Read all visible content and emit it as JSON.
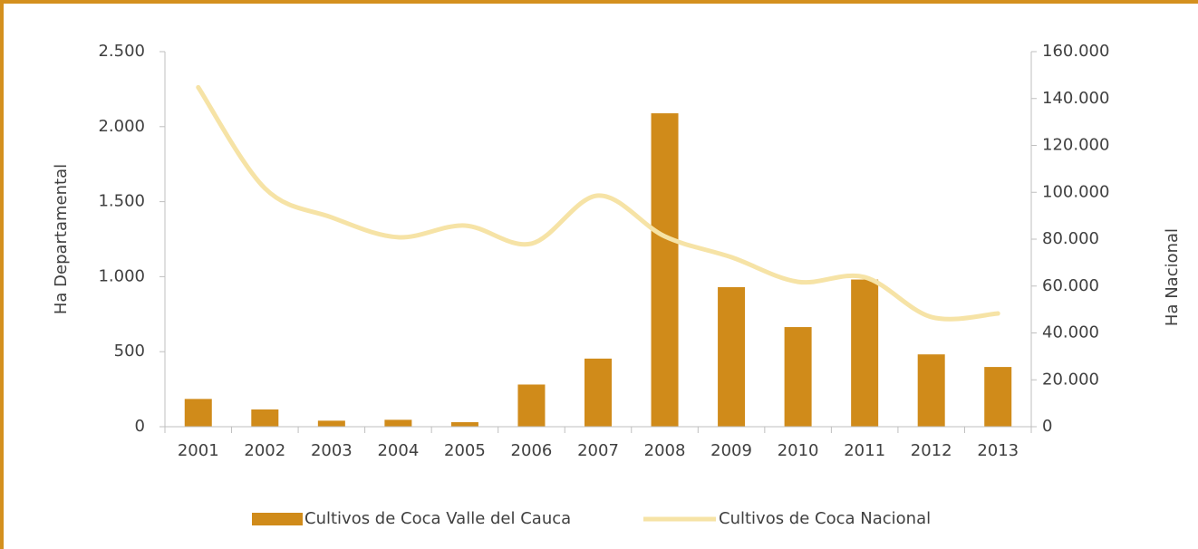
{
  "chart_data": {
    "type": "bar_line",
    "categories": [
      "2001",
      "2002",
      "2003",
      "2004",
      "2005",
      "2006",
      "2007",
      "2008",
      "2009",
      "2010",
      "2011",
      "2012",
      "2013"
    ],
    "series": [
      {
        "name": "Cultivos de Coca Valle del Cauca",
        "type": "bar",
        "color": "#d08b1a",
        "axis": "y",
        "values": [
          185,
          115,
          40,
          46,
          30,
          281,
          454,
          2089,
          930,
          664,
          981,
          482,
          398
        ]
      },
      {
        "name": "Cultivos de Coca Nacional",
        "type": "line",
        "color": "#f6e3a6",
        "axis": "y2",
        "values": [
          144800,
          101700,
          89300,
          80800,
          85800,
          78100,
          98600,
          81200,
          72300,
          61800,
          63800,
          46800,
          48300
        ]
      }
    ],
    "ylabel": "Ha Departamental",
    "y2label": "Ha Nacional",
    "ylim": [
      0,
      2500
    ],
    "yticks": [
      0,
      500,
      {
        "value": 1000,
        "label": "1.000"
      },
      {
        "value": 1500,
        "label": "1.500"
      },
      {
        "value": 2000,
        "label": "2.000"
      },
      {
        "value": 2500,
        "label": "2.500"
      }
    ],
    "y2lim": [
      0,
      160000
    ],
    "y2ticks": [
      0,
      {
        "value": 20000,
        "label": "20.000"
      },
      {
        "value": 40000,
        "label": "40.000"
      },
      {
        "value": 60000,
        "label": "60.000"
      },
      {
        "value": 80000,
        "label": "80.000"
      },
      {
        "value": 100000,
        "label": "100.000"
      },
      {
        "value": 120000,
        "label": "120.000"
      },
      {
        "value": 140000,
        "label": "140.000"
      },
      {
        "value": 160000,
        "label": "160.000"
      }
    ],
    "legend": "bottom"
  }
}
